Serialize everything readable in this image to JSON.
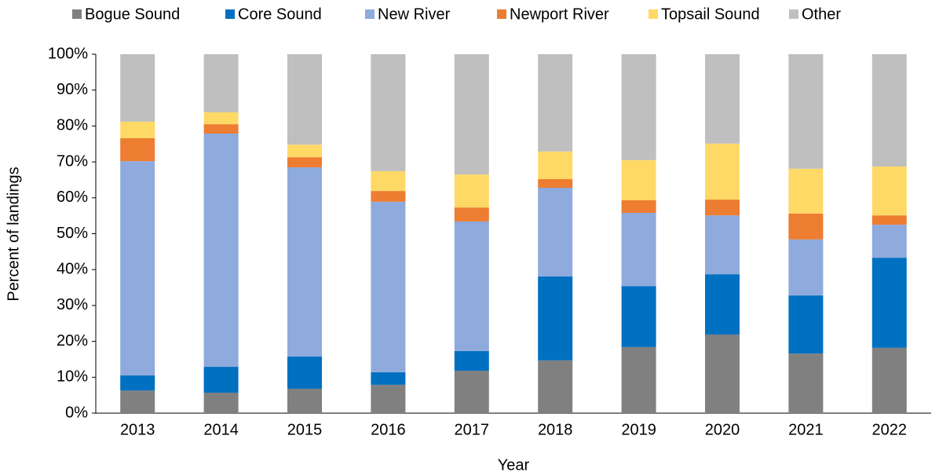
{
  "chart_data": {
    "type": "stacked_bar",
    "y_axis_label": "Percent of landings",
    "x_axis_label": "Year",
    "categories": [
      "2013",
      "2014",
      "2015",
      "2016",
      "2017",
      "2018",
      "2019",
      "2020",
      "2021",
      "2022"
    ],
    "series": [
      {
        "name": "Bogue Sound",
        "color": "#808080",
        "values": [
          6.3,
          5.7,
          6.8,
          7.9,
          11.8,
          14.7,
          18.4,
          21.9,
          16.6,
          18.2
        ]
      },
      {
        "name": "Core Sound",
        "color": "#0070c0",
        "values": [
          4.2,
          7.2,
          9.0,
          3.5,
          5.5,
          23.4,
          17.0,
          16.8,
          16.2,
          25.1
        ]
      },
      {
        "name": "New River",
        "color": "#8faadc",
        "values": [
          59.7,
          65.0,
          52.7,
          47.5,
          36.1,
          24.7,
          20.4,
          16.4,
          15.6,
          9.2
        ]
      },
      {
        "name": "Newport River",
        "color": "#ed7d31",
        "values": [
          6.4,
          2.6,
          2.8,
          3.0,
          3.9,
          2.4,
          3.5,
          4.4,
          7.2,
          2.6
        ]
      },
      {
        "name": "Topsail Sound",
        "color": "#ffd966",
        "values": [
          4.6,
          3.3,
          3.5,
          5.5,
          9.2,
          7.7,
          11.2,
          15.6,
          12.5,
          13.6
        ]
      },
      {
        "name": "Other",
        "color": "#bfbfbf",
        "values": [
          18.8,
          16.2,
          25.2,
          32.6,
          33.5,
          27.1,
          29.5,
          24.9,
          31.9,
          31.3
        ]
      }
    ],
    "ylim": [
      0,
      100
    ],
    "yticks": [
      {
        "value": 0,
        "label": "0%"
      },
      {
        "value": 10,
        "label": "10%"
      },
      {
        "value": 20,
        "label": "20%"
      },
      {
        "value": 30,
        "label": "30%"
      },
      {
        "value": 40,
        "label": "40%"
      },
      {
        "value": 50,
        "label": "50%"
      },
      {
        "value": 60,
        "label": "60%"
      },
      {
        "value": 70,
        "label": "70%"
      },
      {
        "value": 80,
        "label": "80%"
      },
      {
        "value": 90,
        "label": "90%"
      },
      {
        "value": 100,
        "label": "100%"
      }
    ],
    "legend": "top"
  }
}
